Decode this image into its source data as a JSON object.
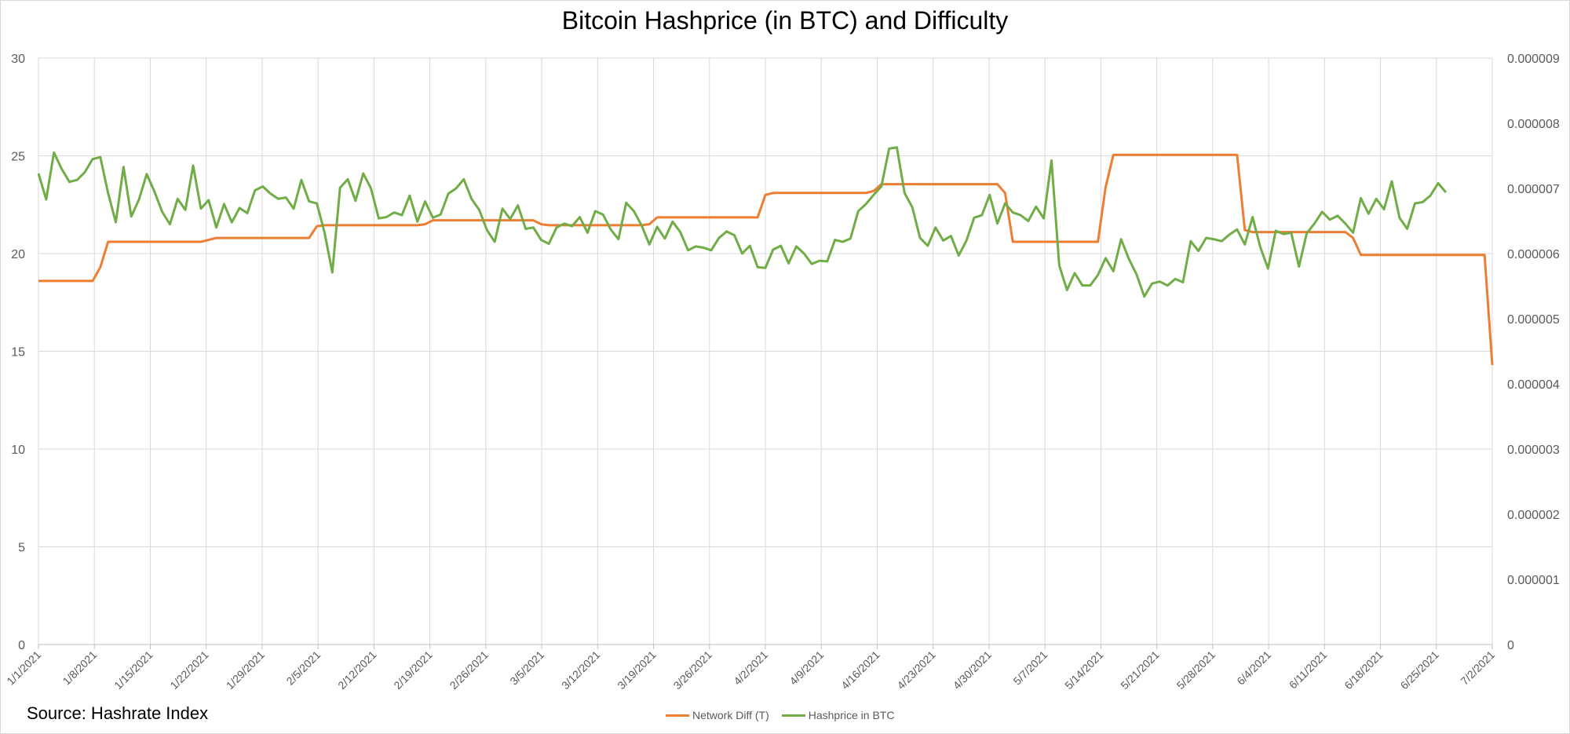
{
  "chart_data": {
    "type": "line",
    "title": "Bitcoin Hashprice (in BTC) and Difficulty",
    "source": "Source: Hashrate Index",
    "xlabel": "",
    "ylabel": "",
    "ylim": [
      0,
      30
    ],
    "y2lim": [
      0,
      9e-06
    ],
    "yticks": [
      "0",
      "5",
      "10",
      "15",
      "20",
      "25",
      "30"
    ],
    "y2ticks": [
      "0",
      "0.000001",
      "0.000002",
      "0.000003",
      "0.000004",
      "0.000005",
      "0.000006",
      "0.000007",
      "0.000008",
      "0.000009"
    ],
    "x_tick_labels": [
      "1/1/2021",
      "1/8/2021",
      "1/15/2021",
      "1/22/2021",
      "1/29/2021",
      "2/5/2021",
      "2/12/2021",
      "2/19/2021",
      "2/26/2021",
      "3/5/2021",
      "3/12/2021",
      "3/19/2021",
      "3/26/2021",
      "4/2/2021",
      "4/9/2021",
      "4/16/2021",
      "4/23/2021",
      "4/30/2021",
      "5/7/2021",
      "5/14/2021",
      "5/21/2021",
      "5/28/2021",
      "6/4/2021",
      "6/11/2021",
      "6/18/2021",
      "6/25/2021",
      "7/2/2021"
    ],
    "grid": true,
    "legend_position": "bottom",
    "series": [
      {
        "name": "Network Diff (T)",
        "axis": "left",
        "color": "#ED7D31",
        "values": [
          18.6,
          18.6,
          18.6,
          18.6,
          18.6,
          18.6,
          18.6,
          18.6,
          19.3,
          20.6,
          20.6,
          20.6,
          20.6,
          20.6,
          20.6,
          20.6,
          20.6,
          20.6,
          20.6,
          20.6,
          20.6,
          20.6,
          20.7,
          20.8,
          20.8,
          20.8,
          20.8,
          20.8,
          20.8,
          20.8,
          20.8,
          20.8,
          20.8,
          20.8,
          20.8,
          20.8,
          21.4,
          21.45,
          21.45,
          21.45,
          21.45,
          21.45,
          21.45,
          21.45,
          21.45,
          21.45,
          21.45,
          21.45,
          21.45,
          21.45,
          21.5,
          21.7,
          21.7,
          21.7,
          21.7,
          21.7,
          21.7,
          21.7,
          21.7,
          21.7,
          21.7,
          21.7,
          21.7,
          21.7,
          21.7,
          21.5,
          21.45,
          21.45,
          21.45,
          21.45,
          21.45,
          21.45,
          21.45,
          21.45,
          21.45,
          21.45,
          21.45,
          21.45,
          21.45,
          21.5,
          21.85,
          21.85,
          21.85,
          21.85,
          21.85,
          21.85,
          21.85,
          21.85,
          21.85,
          21.85,
          21.85,
          21.85,
          21.85,
          21.85,
          23.0,
          23.1,
          23.1,
          23.1,
          23.1,
          23.1,
          23.1,
          23.1,
          23.1,
          23.1,
          23.1,
          23.1,
          23.1,
          23.1,
          23.2,
          23.55,
          23.55,
          23.55,
          23.55,
          23.55,
          23.55,
          23.55,
          23.55,
          23.55,
          23.55,
          23.55,
          23.55,
          23.55,
          23.55,
          23.55,
          23.55,
          23.1,
          20.6,
          20.6,
          20.6,
          20.6,
          20.6,
          20.6,
          20.6,
          20.6,
          20.6,
          20.6,
          20.6,
          20.6,
          23.4,
          25.05,
          25.05,
          25.05,
          25.05,
          25.05,
          25.05,
          25.05,
          25.05,
          25.05,
          25.05,
          25.05,
          25.05,
          25.05,
          25.05,
          25.05,
          25.05,
          25.05,
          21.2,
          21.1,
          21.1,
          21.1,
          21.1,
          21.1,
          21.1,
          21.1,
          21.1,
          21.1,
          21.1,
          21.1,
          21.1,
          21.1,
          20.8,
          19.93,
          19.93,
          19.93,
          19.93,
          19.93,
          19.93,
          19.93,
          19.93,
          19.93,
          19.93,
          19.93,
          19.93,
          19.93,
          19.93,
          19.93,
          19.93,
          19.93,
          14.3
        ]
      },
      {
        "name": "Hashprice in BTC",
        "axis": "right",
        "color": "#70AD47",
        "values": [
          7.23e-06,
          6.83e-06,
          7.55e-06,
          7.3e-06,
          7.1e-06,
          7.13e-06,
          7.25e-06,
          7.45e-06,
          7.48e-06,
          6.93e-06,
          6.48e-06,
          7.33e-06,
          6.57e-06,
          6.83e-06,
          7.22e-06,
          6.95e-06,
          6.64e-06,
          6.45e-06,
          6.84e-06,
          6.67e-06,
          7.35e-06,
          6.69e-06,
          6.82e-06,
          6.4e-06,
          6.76e-06,
          6.48e-06,
          6.7e-06,
          6.62e-06,
          6.97e-06,
          7.03e-06,
          6.92e-06,
          6.84e-06,
          6.86e-06,
          6.69e-06,
          7.13e-06,
          6.8e-06,
          6.77e-06,
          6.32e-06,
          5.71e-06,
          7.01e-06,
          7.14e-06,
          6.81e-06,
          7.23e-06,
          7e-06,
          6.54e-06,
          6.56e-06,
          6.63e-06,
          6.59e-06,
          6.89e-06,
          6.49e-06,
          6.8e-06,
          6.55e-06,
          6.6e-06,
          6.92e-06,
          7e-06,
          7.14e-06,
          6.84e-06,
          6.67e-06,
          6.36e-06,
          6.18e-06,
          6.69e-06,
          6.53e-06,
          6.74e-06,
          6.38e-06,
          6.4e-06,
          6.21e-06,
          6.15e-06,
          6.4e-06,
          6.46e-06,
          6.42e-06,
          6.56e-06,
          6.32e-06,
          6.65e-06,
          6.6e-06,
          6.37e-06,
          6.22e-06,
          6.78e-06,
          6.65e-06,
          6.43e-06,
          6.14e-06,
          6.41e-06,
          6.23e-06,
          6.49e-06,
          6.33e-06,
          6.05e-06,
          6.11e-06,
          6.09e-06,
          6.05e-06,
          6.24e-06,
          6.34e-06,
          6.28e-06,
          6e-06,
          6.12e-06,
          5.79e-06,
          5.78e-06,
          6.06e-06,
          6.12e-06,
          5.85e-06,
          6.11e-06,
          6e-06,
          5.84e-06,
          5.89e-06,
          5.88e-06,
          6.21e-06,
          6.18e-06,
          6.23e-06,
          6.65e-06,
          6.76e-06,
          6.9e-06,
          7.03e-06,
          7.61e-06,
          7.63e-06,
          6.93e-06,
          6.71e-06,
          6.24e-06,
          6.12e-06,
          6.4e-06,
          6.2e-06,
          6.27e-06,
          5.97e-06,
          6.2e-06,
          6.55e-06,
          6.59e-06,
          6.9e-06,
          6.46e-06,
          6.77e-06,
          6.63e-06,
          6.59e-06,
          6.5e-06,
          6.72e-06,
          6.54e-06,
          7.43e-06,
          5.82e-06,
          5.44e-06,
          5.7e-06,
          5.51e-06,
          5.51e-06,
          5.67e-06,
          5.93e-06,
          5.73e-06,
          6.22e-06,
          5.92e-06,
          5.68e-06,
          5.34e-06,
          5.54e-06,
          5.57e-06,
          5.51e-06,
          5.61e-06,
          5.56e-06,
          6.19e-06,
          6.04e-06,
          6.24e-06,
          6.22e-06,
          6.19e-06,
          6.29e-06,
          6.37e-06,
          6.14e-06,
          6.56e-06,
          6.1e-06,
          5.77e-06,
          6.35e-06,
          6.3e-06,
          6.32e-06,
          5.8e-06,
          6.31e-06,
          6.46e-06,
          6.64e-06,
          6.52e-06,
          6.58e-06,
          6.46e-06,
          6.32e-06,
          6.85e-06,
          6.61e-06,
          6.84e-06,
          6.68e-06,
          7.11e-06,
          6.55e-06,
          6.38e-06,
          6.77e-06,
          6.79e-06,
          6.89e-06,
          7.08e-06,
          6.94e-06
        ]
      }
    ]
  }
}
